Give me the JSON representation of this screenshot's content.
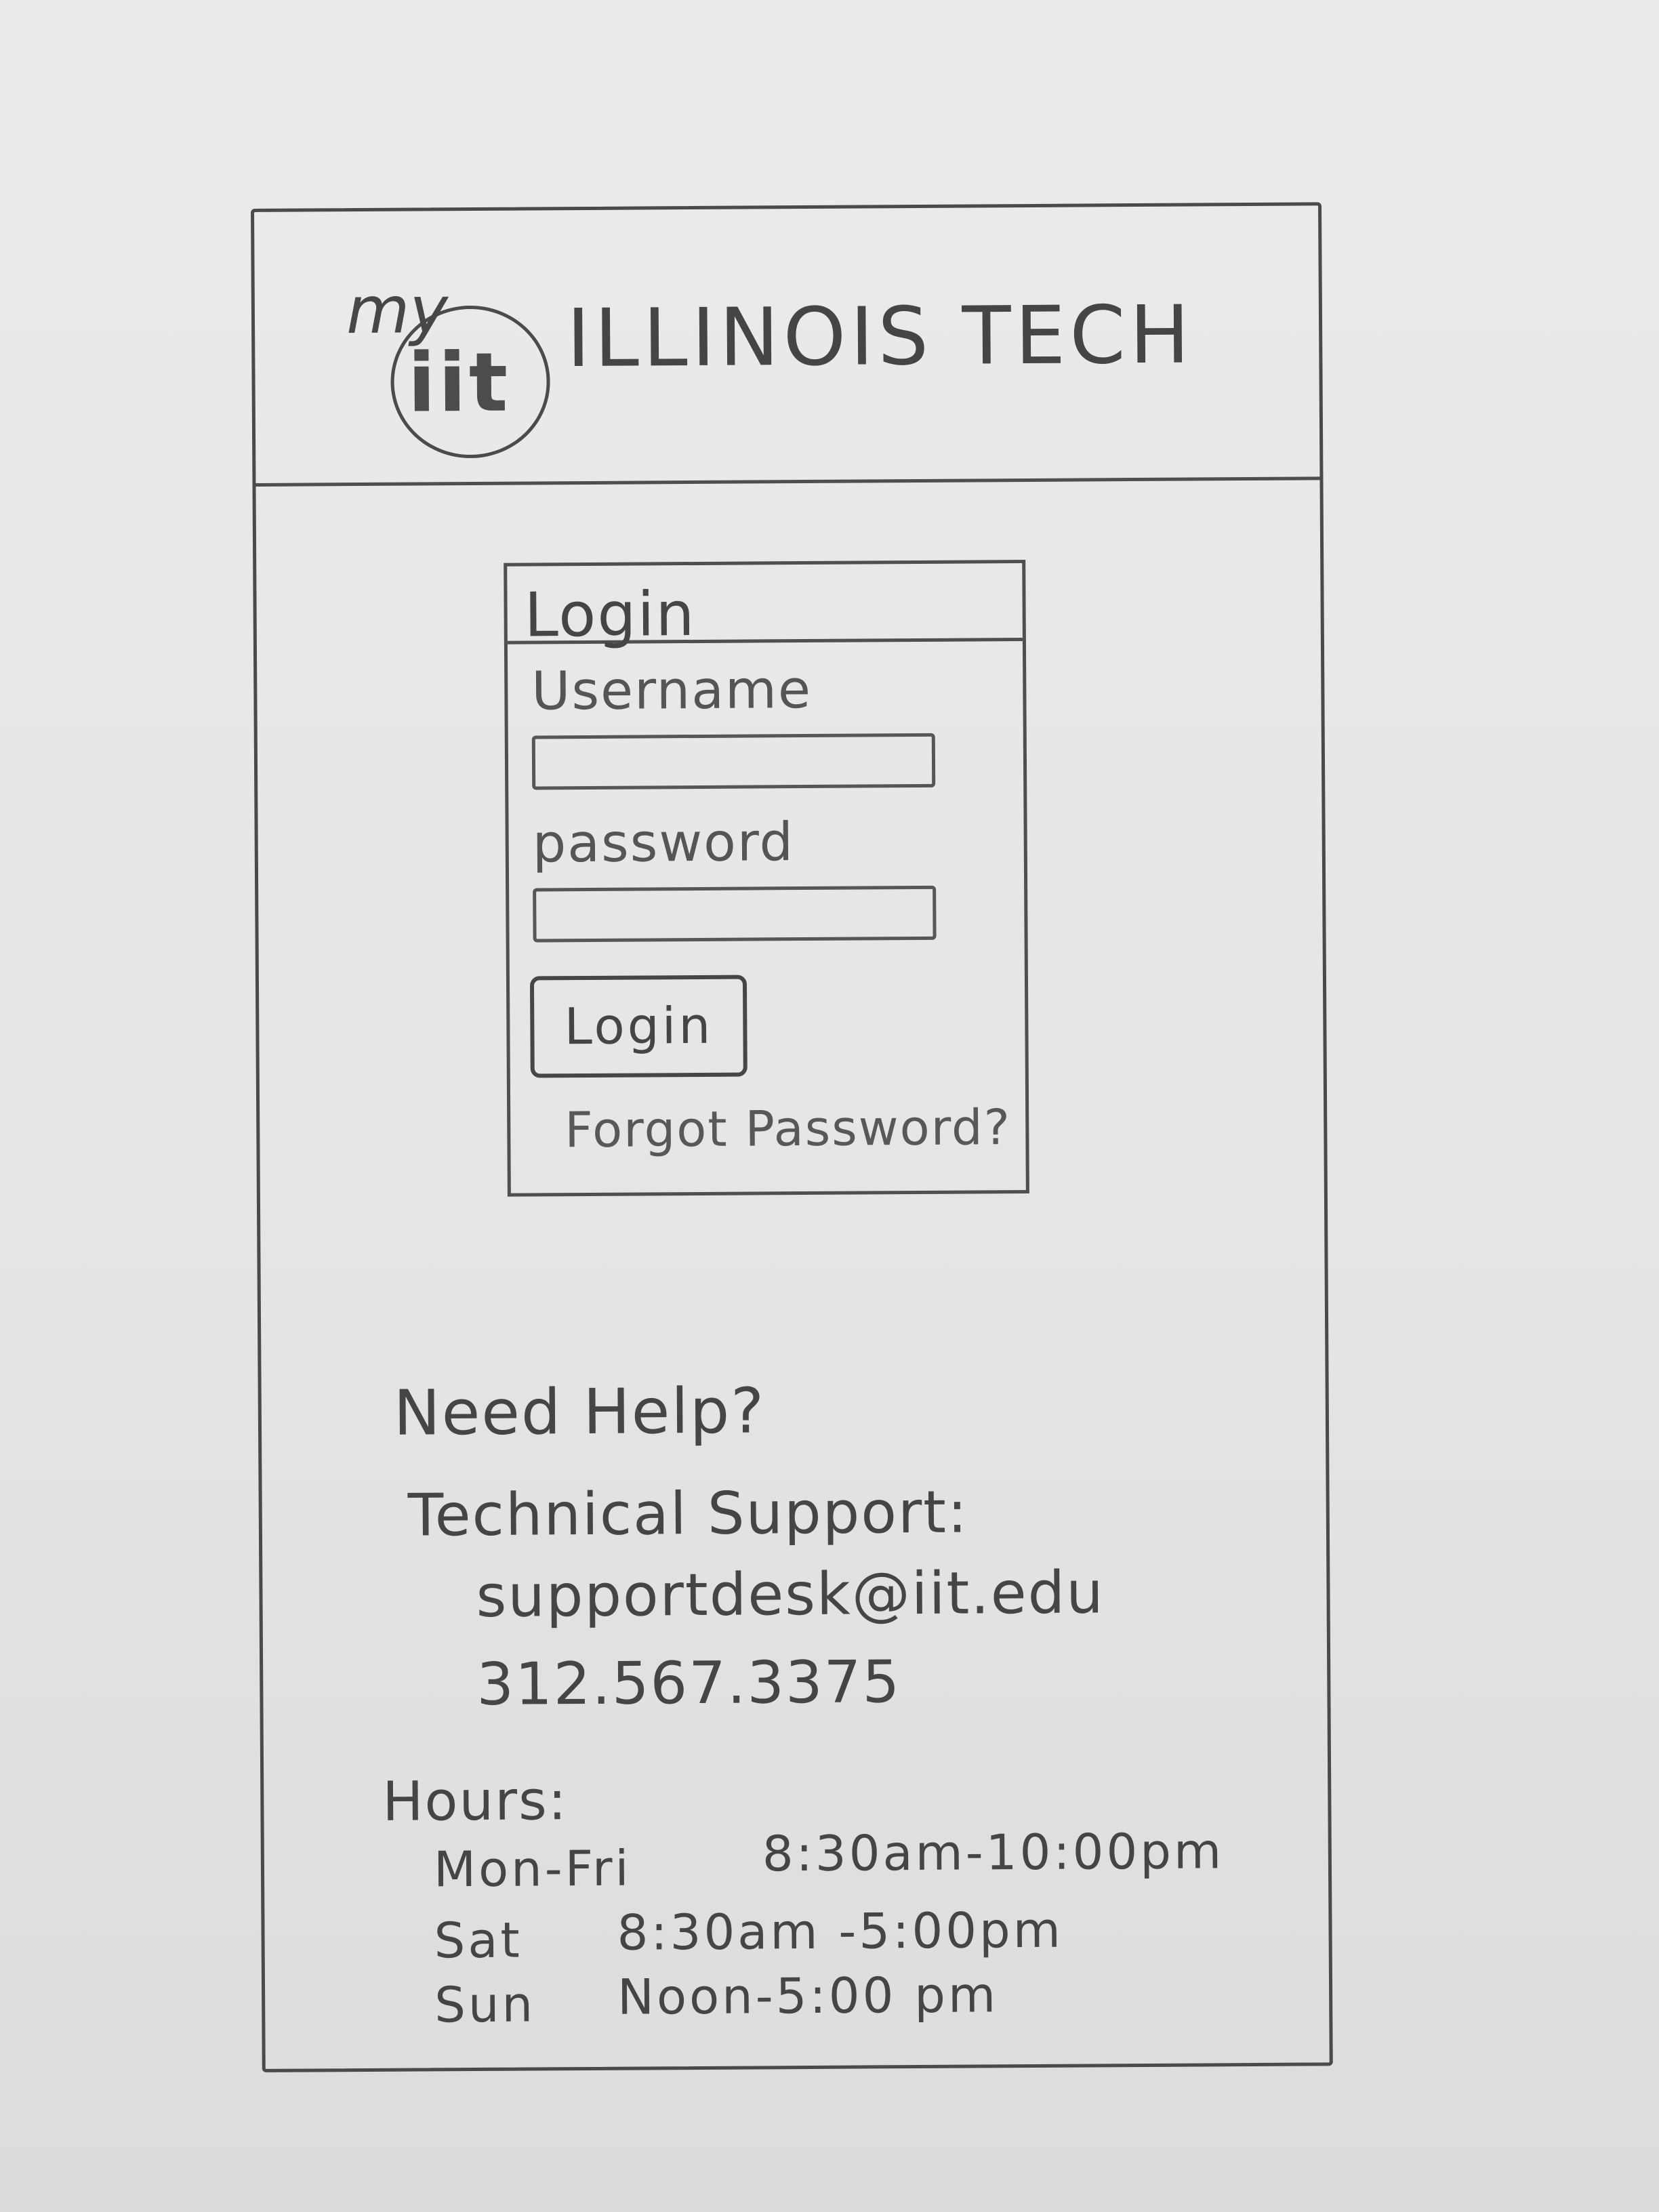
{
  "header": {
    "logo_prefix": "my",
    "logo_mark": "iit",
    "title": "ILLINOIS TECH"
  },
  "login": {
    "panel_title": "Login",
    "username_label": "Username",
    "username_value": "",
    "password_label": "password",
    "password_value": "",
    "button_label": "Login",
    "forgot_link": "Forgot Password?"
  },
  "help": {
    "title": "Need Help?",
    "support_label": "Technical Support:",
    "email": "supportdesk@iit.edu",
    "phone": "312.567.3375",
    "hours_label": "Hours:",
    "hours": [
      {
        "days": "Mon-Fri",
        "time": "8:30am-10:00pm"
      },
      {
        "days": "Sat",
        "time": "8:30am -5:00pm"
      },
      {
        "days": "Sun",
        "time": "Noon-5:00 pm"
      }
    ]
  }
}
